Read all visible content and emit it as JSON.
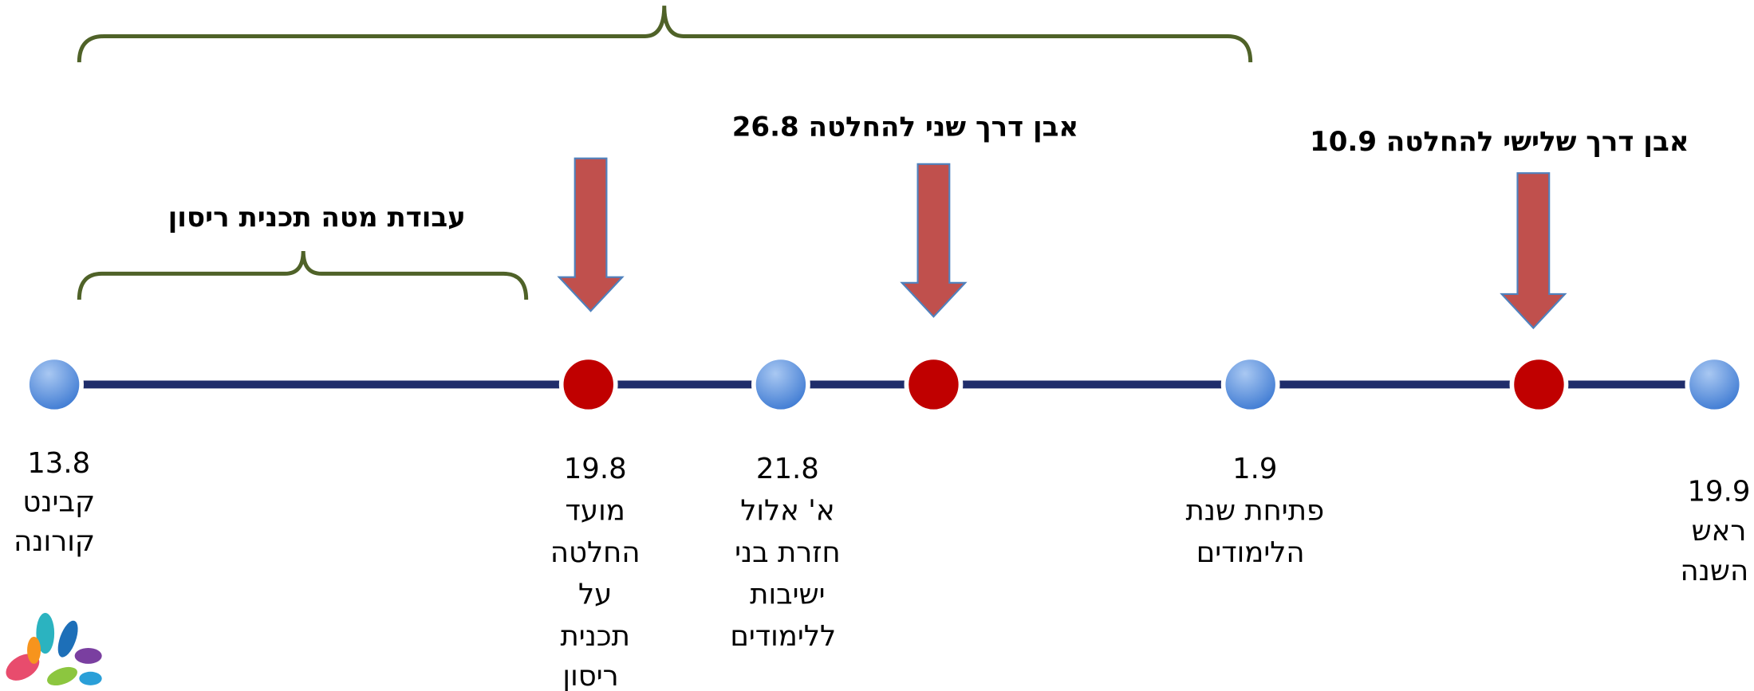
{
  "top_labels": {
    "staff_work": "עבודת מטה תכנית ריסון",
    "milestone_2": "אבן דרך שני להחלטה 26.8",
    "milestone_3": "אבן דרך שלישי להחלטה 10.9"
  },
  "nodes": [
    {
      "lines": [
        "13.8",
        "קבינט",
        "קורונה"
      ]
    },
    {
      "lines": [
        "19.8",
        "מועד",
        "החלטה",
        "על",
        "תכנית",
        "ריסון"
      ]
    },
    {
      "lines": [
        "21.8",
        "א' אלול",
        "חזרת בני",
        "ישיבות",
        "ללימודים"
      ]
    },
    {
      "lines": [
        "1.9",
        "פתיחת שנת",
        "הלימודים"
      ]
    },
    {
      "lines": [
        "19.9",
        "ראש",
        "השנה"
      ]
    }
  ]
}
